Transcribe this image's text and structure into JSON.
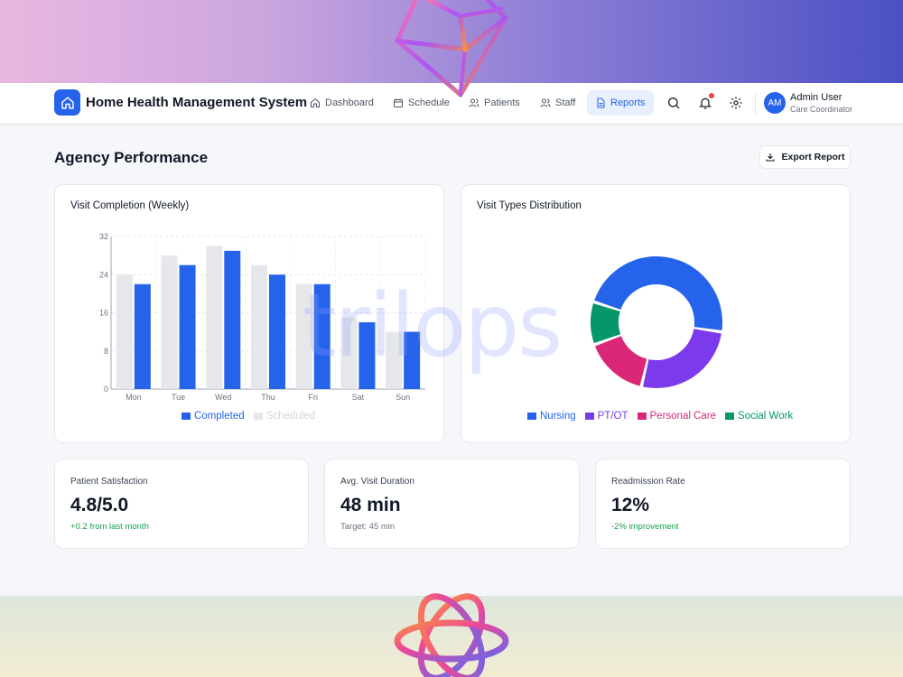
{
  "app": {
    "title": "Home Health Management System"
  },
  "nav": [
    {
      "label": "Dashboard",
      "icon": "home-icon"
    },
    {
      "label": "Schedule",
      "icon": "calendar-icon"
    },
    {
      "label": "Patients",
      "icon": "users-icon"
    },
    {
      "label": "Staff",
      "icon": "user-group-icon"
    },
    {
      "label": "Reports",
      "icon": "document-icon",
      "active": true
    }
  ],
  "user": {
    "initials": "AM",
    "name": "Admin User",
    "role": "Care Coordinator"
  },
  "page": {
    "title": "Agency Performance",
    "export_label": "Export Report"
  },
  "watermark": "trilops",
  "colors": {
    "accent": "#2563eb",
    "scheduled": "#e5e7eb",
    "nursing": "#2563eb",
    "ptot": "#7c3aed",
    "personal_care": "#db2777",
    "social_work": "#059669",
    "positive": "#16a34a",
    "notification": "#ef4444"
  },
  "chart_data": [
    {
      "type": "bar",
      "title": "Visit Completion (Weekly)",
      "categories": [
        "Mon",
        "Tue",
        "Wed",
        "Thu",
        "Fri",
        "Sat",
        "Sun"
      ],
      "series": [
        {
          "name": "Scheduled",
          "values": [
            24,
            28,
            30,
            26,
            22,
            15,
            12
          ]
        },
        {
          "name": "Completed",
          "values": [
            22,
            26,
            29,
            24,
            22,
            14,
            12
          ]
        }
      ],
      "legend_order": [
        "Completed",
        "Scheduled"
      ],
      "ylim": [
        0,
        32
      ],
      "yticks": [
        0,
        8,
        16,
        24,
        32
      ],
      "grid": true,
      "legend": "bottom"
    },
    {
      "type": "pie",
      "title": "Visit Types Distribution",
      "labels": [
        "Nursing",
        "PT/OT",
        "Personal Care",
        "Social Work"
      ],
      "values": [
        45,
        25,
        15,
        10
      ],
      "legend": "bottom"
    }
  ],
  "stats": [
    {
      "label": "Patient Satisfaction",
      "value": "4.8/5.0",
      "sub": "+0.2 from last month",
      "positive": true
    },
    {
      "label": "Avg. Visit Duration",
      "value": "48 min",
      "sub": "Target: 45 min",
      "positive": false
    },
    {
      "label": "Readmission Rate",
      "value": "12%",
      "sub": "-2% improvement",
      "positive": true
    }
  ]
}
